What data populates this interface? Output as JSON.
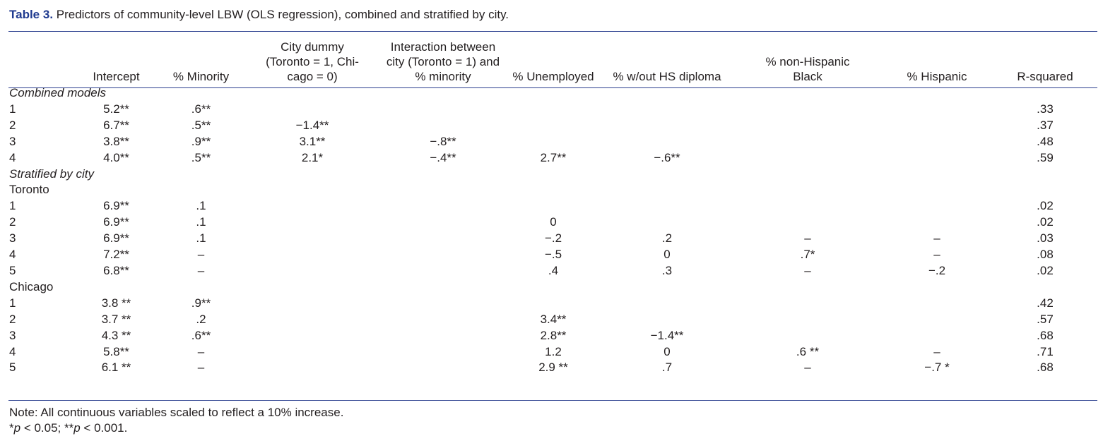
{
  "caption": {
    "label": "Table 3.",
    "text": " Predictors of community-level LBW (OLS regression), combined and stratified by city."
  },
  "columns": [
    "",
    "Intercept",
    "% Minority",
    "City dummy\n(Toronto = 1, Chi-\ncago = 0)",
    "Interaction between\ncity (Toronto = 1) and\n% minority",
    "% Unemployed",
    "% w/out HS diploma",
    "% non-Hispanic\nBlack",
    "% Hispanic",
    "R-squared"
  ],
  "rows": [
    {
      "type": "section",
      "label": "Combined models",
      "italic": true
    },
    {
      "cells": [
        "1",
        "5.2**",
        ".6**",
        "",
        "",
        "",
        "",
        "",
        "",
        ".33"
      ]
    },
    {
      "cells": [
        "2",
        "6.7**",
        ".5**",
        "−1.4**",
        "",
        "",
        "",
        "",
        "",
        ".37"
      ]
    },
    {
      "cells": [
        "3",
        "3.8**",
        ".9**",
        "3.1**",
        "−.8**",
        "",
        "",
        "",
        "",
        ".48"
      ]
    },
    {
      "cells": [
        "4",
        "4.0**",
        ".5**",
        "2.1*",
        "−.4**",
        "2.7**",
        "−.6**",
        "",
        "",
        ".59"
      ]
    },
    {
      "type": "section",
      "label": "Stratified by city",
      "italic": true
    },
    {
      "type": "section",
      "label": "Toronto",
      "italic": false
    },
    {
      "cells": [
        "1",
        "6.9**",
        ".1",
        "",
        "",
        "",
        "",
        "",
        "",
        ".02"
      ]
    },
    {
      "cells": [
        "2",
        "6.9**",
        ".1",
        "",
        "",
        "0",
        "",
        "",
        "",
        ".02"
      ]
    },
    {
      "cells": [
        "3",
        "6.9**",
        ".1",
        "",
        "",
        "−.2",
        ".2",
        "–",
        "–",
        ".03"
      ]
    },
    {
      "cells": [
        "4",
        "7.2**",
        "–",
        "",
        "",
        "−.5",
        "0",
        ".7*",
        "–",
        ".08"
      ]
    },
    {
      "cells": [
        "5",
        "6.8**",
        "–",
        "",
        "",
        ".4",
        ".3",
        "–",
        "−.2",
        ".02"
      ]
    },
    {
      "type": "section",
      "label": "Chicago",
      "italic": false
    },
    {
      "cells": [
        "1",
        "3.8 **",
        ".9**",
        "",
        "",
        "",
        "",
        "",
        "",
        ".42"
      ]
    },
    {
      "cells": [
        "2",
        "3.7 **",
        ".2",
        "",
        "",
        "3.4**",
        "",
        "",
        "",
        ".57"
      ]
    },
    {
      "cells": [
        "3",
        "4.3 **",
        ".6**",
        "",
        "",
        "2.8**",
        "−1.4**",
        "",
        "",
        ".68"
      ]
    },
    {
      "cells": [
        "4",
        "5.8**",
        "–",
        "",
        "",
        "1.2",
        "0",
        ".6 **",
        "–",
        ".71"
      ]
    },
    {
      "cells": [
        "5",
        "6.1 **",
        "–",
        "",
        "",
        "2.9 **",
        ".7",
        "–",
        "−.7 *",
        ".68"
      ]
    }
  ],
  "notes": [
    "Note: All continuous variables scaled to reflect a 10% increase.",
    "*p < 0.05; **p < 0.001."
  ]
}
